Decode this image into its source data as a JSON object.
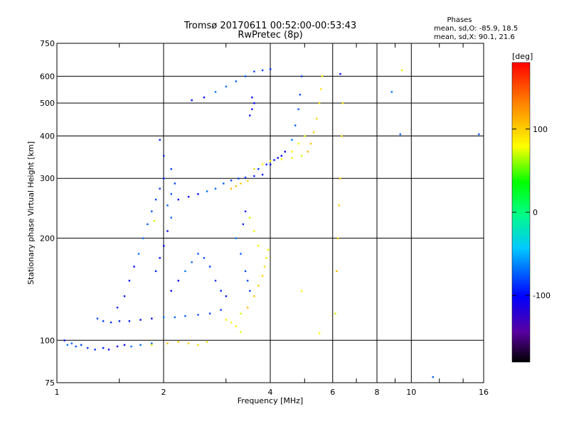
{
  "chart_data": {
    "type": "scatter",
    "title": "Tromsø 20170611 00:52:00-00:53:43",
    "subtitle": "RwPretec (8p)",
    "xlabel": "Frequency [MHz]",
    "ylabel": "Stationary phase Virtual Height [km]",
    "x_scale": "log",
    "y_scale": "log",
    "xlim": [
      1,
      16
    ],
    "ylim": [
      75,
      750
    ],
    "x_ticks": [
      1,
      2,
      4,
      6,
      8,
      10,
      16
    ],
    "x_tick_labels": [
      "1",
      "2",
      "4",
      "6",
      "8",
      "10",
      "16"
    ],
    "x_minor_ticks": [
      1.5,
      3,
      5,
      7,
      9,
      12,
      14
    ],
    "y_ticks": [
      75,
      100,
      200,
      300,
      400,
      500,
      600,
      750
    ],
    "y_tick_labels": [
      "75",
      "100",
      "200",
      "300",
      "400",
      "500",
      "600",
      "750"
    ],
    "grid": true,
    "legend": {
      "title": "Phases",
      "lines": [
        "mean, sd,O: -85.9, 18.5",
        "mean, sd,X:  90.1, 21.6"
      ],
      "placement": "top-right"
    },
    "colorbar": {
      "label": "[deg]",
      "range": [
        -180,
        180
      ],
      "ticks": [
        100,
        0,
        -100
      ],
      "tick_labels": [
        "100",
        "0",
        "-100"
      ],
      "colormap": "rainbow"
    },
    "series": [
      {
        "name": "O",
        "color_value": -85.9,
        "points": [
          [
            1.05,
            100
          ],
          [
            1.07,
            97
          ],
          [
            1.1,
            98
          ],
          [
            1.13,
            96
          ],
          [
            1.17,
            97
          ],
          [
            1.22,
            95
          ],
          [
            1.28,
            94
          ],
          [
            1.35,
            95
          ],
          [
            1.4,
            94
          ],
          [
            1.48,
            96
          ],
          [
            1.55,
            97
          ],
          [
            1.62,
            96
          ],
          [
            1.72,
            97
          ],
          [
            1.85,
            98
          ],
          [
            1.3,
            116
          ],
          [
            1.35,
            114
          ],
          [
            1.42,
            113
          ],
          [
            1.5,
            114
          ],
          [
            1.6,
            114
          ],
          [
            1.72,
            115
          ],
          [
            1.85,
            116
          ],
          [
            2,
            117
          ],
          [
            2.15,
            117
          ],
          [
            2.3,
            118
          ],
          [
            2.5,
            119
          ],
          [
            2.7,
            120
          ],
          [
            2.9,
            123
          ],
          [
            1.48,
            125
          ],
          [
            1.55,
            135
          ],
          [
            1.6,
            150
          ],
          [
            1.65,
            165
          ],
          [
            1.7,
            180
          ],
          [
            1.75,
            200
          ],
          [
            1.8,
            220
          ],
          [
            1.85,
            240
          ],
          [
            1.9,
            260
          ],
          [
            1.95,
            280
          ],
          [
            2,
            300
          ],
          [
            1.9,
            160
          ],
          [
            1.95,
            175
          ],
          [
            2,
            190
          ],
          [
            2.05,
            210
          ],
          [
            2.1,
            230
          ],
          [
            2.05,
            250
          ],
          [
            2.1,
            270
          ],
          [
            2.15,
            290
          ],
          [
            2.1,
            320
          ],
          [
            2,
            350
          ],
          [
            1.95,
            390
          ],
          [
            2.2,
            260
          ],
          [
            2.35,
            265
          ],
          [
            2.5,
            270
          ],
          [
            2.65,
            275
          ],
          [
            2.8,
            280
          ],
          [
            2.95,
            290
          ],
          [
            3.1,
            296
          ],
          [
            3.25,
            300
          ],
          [
            3.4,
            302
          ],
          [
            3.6,
            305
          ],
          [
            3.8,
            308
          ],
          [
            2.1,
            140
          ],
          [
            2.2,
            150
          ],
          [
            2.3,
            160
          ],
          [
            2.4,
            170
          ],
          [
            2.5,
            180
          ],
          [
            2.6,
            175
          ],
          [
            2.7,
            165
          ],
          [
            2.8,
            150
          ],
          [
            2.9,
            140
          ],
          [
            3,
            135
          ],
          [
            2.4,
            510
          ],
          [
            2.6,
            520
          ],
          [
            2.8,
            540
          ],
          [
            3,
            560
          ],
          [
            3.2,
            580
          ],
          [
            3.4,
            600
          ],
          [
            3.6,
            620
          ],
          [
            3.8,
            625
          ],
          [
            4,
            630
          ],
          [
            3.5,
            460
          ],
          [
            3.55,
            480
          ],
          [
            3.6,
            500
          ],
          [
            3.55,
            520
          ],
          [
            3.2,
            200
          ],
          [
            3.3,
            180
          ],
          [
            3.4,
            160
          ],
          [
            3.45,
            150
          ],
          [
            3.5,
            140
          ],
          [
            3.35,
            220
          ],
          [
            3.4,
            240
          ],
          [
            4,
            330
          ],
          [
            4.2,
            345
          ],
          [
            4.4,
            360
          ],
          [
            4.6,
            390
          ],
          [
            4.7,
            430
          ],
          [
            4.8,
            480
          ],
          [
            4.85,
            530
          ],
          [
            4.9,
            600
          ],
          [
            3.7,
            320
          ],
          [
            3.9,
            330
          ],
          [
            4.1,
            340
          ],
          [
            4.3,
            350
          ],
          [
            6.3,
            610
          ],
          [
            8.8,
            540
          ],
          [
            9.3,
            405
          ],
          [
            11.5,
            78
          ],
          [
            15.5,
            405
          ]
        ]
      },
      {
        "name": "X",
        "color_value": 90.1,
        "points": [
          [
            1.85,
            97
          ],
          [
            2.05,
            98
          ],
          [
            2.2,
            99
          ],
          [
            2.35,
            98
          ],
          [
            2.5,
            97
          ],
          [
            2.65,
            99
          ],
          [
            3,
            115
          ],
          [
            3.1,
            113
          ],
          [
            3.2,
            110
          ],
          [
            3.3,
            106
          ],
          [
            3.3,
            120
          ],
          [
            3.45,
            125
          ],
          [
            3.6,
            135
          ],
          [
            3.7,
            145
          ],
          [
            3.8,
            155
          ],
          [
            3.85,
            165
          ],
          [
            3.9,
            175
          ],
          [
            3.95,
            185
          ],
          [
            3.7,
            190
          ],
          [
            3.6,
            210
          ],
          [
            3.5,
            230
          ],
          [
            3.1,
            280
          ],
          [
            3.2,
            285
          ],
          [
            3.3,
            290
          ],
          [
            3.45,
            295
          ],
          [
            3.6,
            320
          ],
          [
            3.8,
            330
          ],
          [
            4,
            338
          ],
          [
            4.3,
            342
          ],
          [
            4.6,
            345
          ],
          [
            4.9,
            350
          ],
          [
            5.1,
            360
          ],
          [
            5.2,
            380
          ],
          [
            5.3,
            410
          ],
          [
            5.4,
            450
          ],
          [
            5.5,
            500
          ],
          [
            5.55,
            550
          ],
          [
            5.6,
            600
          ],
          [
            4.6,
            360
          ],
          [
            4.8,
            380
          ],
          [
            5,
            400
          ],
          [
            6.1,
            120
          ],
          [
            6.15,
            160
          ],
          [
            6.2,
            200
          ],
          [
            6.25,
            250
          ],
          [
            6.3,
            300
          ],
          [
            6.35,
            400
          ],
          [
            6.4,
            500
          ],
          [
            4.9,
            140
          ],
          [
            5.5,
            105
          ],
          [
            9.4,
            625
          ],
          [
            1.88,
            225
          ]
        ]
      }
    ]
  }
}
